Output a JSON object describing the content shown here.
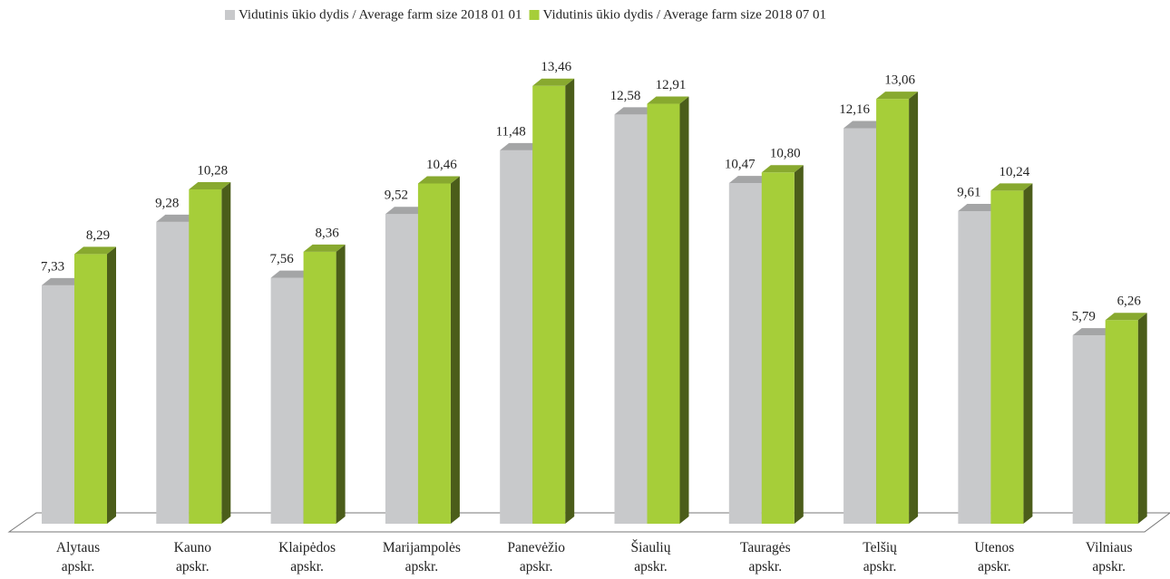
{
  "chart_data": {
    "type": "bar3d",
    "categories": [
      "Alytaus apskr.",
      "Kauno apskr.",
      "Klaipėdos apskr.",
      "Marijampolės apskr.",
      "Panevėžio apskr.",
      "Šiaulių apskr.",
      "Tauragės apskr.",
      "Telšių apskr.",
      "Utenos apskr.",
      "Vilniaus apskr."
    ],
    "series": [
      {
        "name": "Vidutinis ūkio dydis /  Average farm size 2018 01 01",
        "color": "#c8c9cb",
        "values": [
          7.33,
          9.28,
          7.56,
          9.52,
          11.48,
          12.58,
          10.47,
          12.16,
          9.61,
          5.79
        ],
        "value_labels": [
          "7,33",
          "9,28",
          "7,56",
          "9,52",
          "11,48",
          "12,58",
          "10,47",
          "12,16",
          "9,61",
          "5,79"
        ]
      },
      {
        "name": "Vidutinis ūkio dydis /  Average farm size 2018 07 01",
        "color": "#a6ce39",
        "values": [
          8.29,
          10.28,
          8.36,
          10.46,
          13.46,
          12.91,
          10.8,
          13.06,
          10.24,
          6.26
        ],
        "value_labels": [
          "8,29",
          "10,28",
          "8,36",
          "10,46",
          "13,46",
          "12,91",
          "10,80",
          "13,06",
          "10,24",
          "6,26"
        ]
      }
    ],
    "legend": "top"
  }
}
